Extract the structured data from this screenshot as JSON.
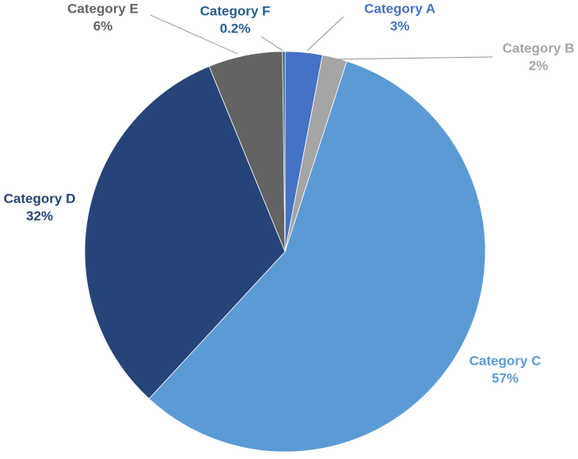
{
  "chart_data": {
    "type": "pie",
    "categories": [
      "Category A",
      "Category B",
      "Category C",
      "Category D",
      "Category E",
      "Category F"
    ],
    "values": [
      3,
      2,
      57,
      32,
      6,
      0.2
    ],
    "value_labels": [
      "3%",
      "2%",
      "57%",
      "32%",
      "6%",
      "0.2%"
    ],
    "colors": [
      "#4472c4",
      "#a5a5a5",
      "#5b9bd5",
      "#264478",
      "#636363",
      "#255e91"
    ]
  }
}
